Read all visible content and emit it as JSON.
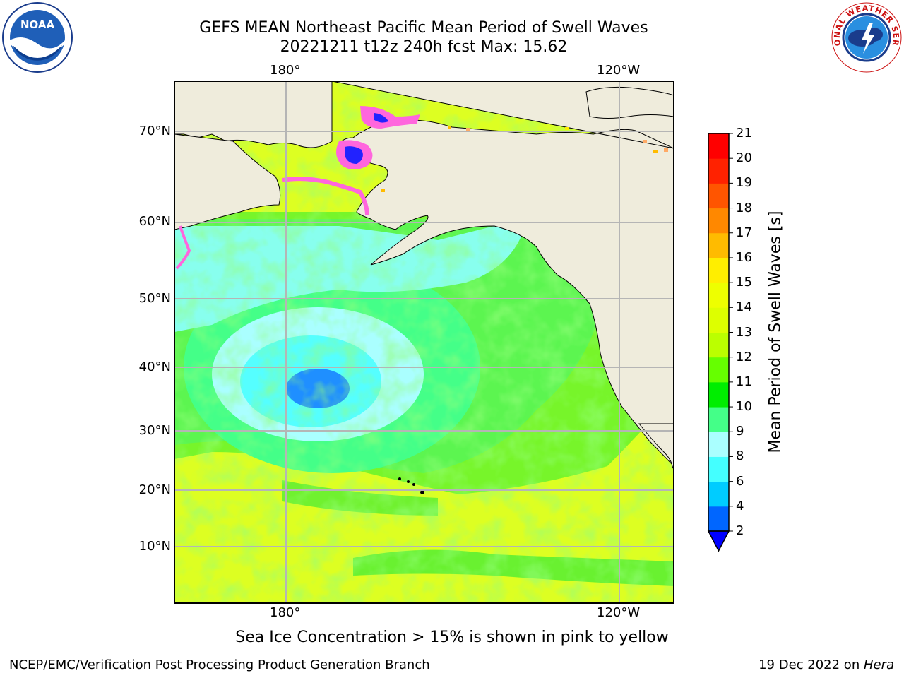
{
  "title": {
    "line1": "GEFS MEAN Northeast Pacific Mean Period of Swell Waves",
    "line2": "20221211 t12z 240h fcst   Max: 15.62"
  },
  "axes": {
    "lon_top": [
      "180°",
      "120°W"
    ],
    "lon_bottom": [
      "180°",
      "120°W"
    ],
    "lat": [
      "70°N",
      "60°N",
      "50°N",
      "40°N",
      "30°N",
      "20°N",
      "10°N"
    ]
  },
  "colorbar": {
    "label": "Mean Period of Swell Waves [s]",
    "ticks": [
      "2",
      "4",
      "6",
      "8",
      "9",
      "10",
      "11",
      "12",
      "13",
      "14",
      "15",
      "16",
      "17",
      "18",
      "19",
      "20",
      "21"
    ],
    "colors": [
      "#0066ff",
      "#00ccff",
      "#44ffff",
      "#aaffff",
      "#44ff88",
      "#00ee00",
      "#66ff00",
      "#bbff00",
      "#ddff00",
      "#eeff00",
      "#ffee00",
      "#ffbb00",
      "#ff8800",
      "#ff5500",
      "#ff2200",
      "#ff0000"
    ],
    "under_color": "#0000ff"
  },
  "map": {
    "land_color": "#efecdc",
    "ocean_base": "#ddff22"
  },
  "subtitle": "Sea Ice Concentration > 15% is shown in pink to yellow",
  "footer": {
    "left": "NCEP/EMC/Verification Post Processing Product Generation Branch",
    "right_prefix": "19 Dec 2022 on ",
    "right_italic": "Hera"
  },
  "logos": {
    "noaa_text": "NOAA",
    "nws_text": "NATIONAL WEATHER SERVICE"
  }
}
